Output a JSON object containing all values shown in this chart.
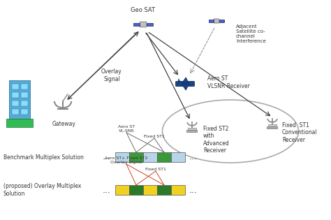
{
  "bg_color": "#ffffff",
  "geo_sat_label": "Geo SAT",
  "adj_sat_label": "Adjacent\nSatellite co-\nchannel\nInterference",
  "overlay_signal_label": "Overlay\nSignal",
  "gateway_label": "Gateway",
  "aero_st_label": "Aero ST\nVLSNR Receiver",
  "fixed_st2_label": "Fixed ST2\nwith\nAdvanced\nReceiver",
  "fixed_st1_label": "Fixed  ST1\nConventional\nReceiver",
  "benchmark_label": "Benchmark Multiplex Solution",
  "proposed_label": "(proposed) Overlay Multiplex\nSolution",
  "bench_bar_label1": "Aero ST\nVL-SNR",
  "bench_bar_label2": "Fixed ST1",
  "overlay_bar_label1": "Aero ST+ Fixed ST2\nOverlay Signal",
  "overlay_bar_label2": "Fixed ST1",
  "light_blue": "#b8d4e8",
  "green": "#3a9a3a",
  "yellow": "#f0d020",
  "dark_green": "#2a7a2a",
  "arrow_color": "#444444",
  "dashed_color": "#888888",
  "ellipse_color": "#aaaaaa",
  "red_line_color": "#cc2200",
  "sat_body": "#c0c0c0",
  "sat_panel": "#4466cc",
  "dish_color": "#888888",
  "plane_color": "#1a4488",
  "building_color": "#5aaad0",
  "building_win": "#88ddff",
  "ground_color": "#33bb55"
}
